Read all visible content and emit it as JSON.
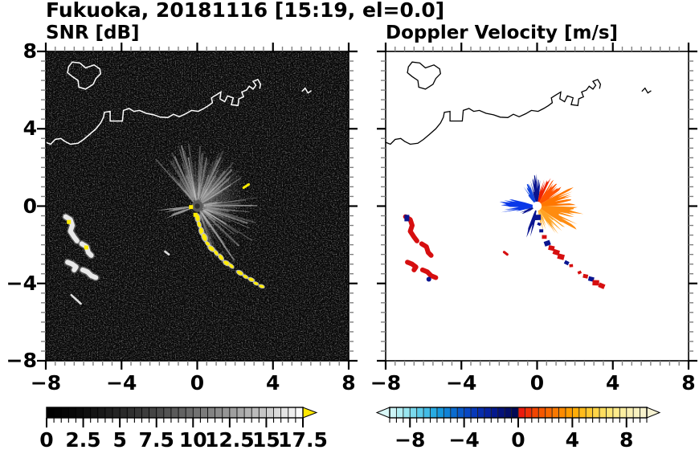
{
  "title": "Fukuoka, 20181116 [15:19, el=0.0]",
  "panels": {
    "snr": {
      "title": "SNR [dB]"
    },
    "vel": {
      "title": "Doppler Velocity [m/s]"
    }
  },
  "axes": {
    "xlim": [
      -8,
      8
    ],
    "ylim": [
      -8,
      8
    ],
    "x_tick_labels": [
      "−8",
      "−4",
      "0",
      "4",
      "8"
    ],
    "x_tick_values": [
      -8,
      -4,
      0,
      4,
      8
    ],
    "y_tick_labels": [
      "8",
      "4",
      "0",
      "−4",
      "−8"
    ],
    "y_tick_values": [
      8,
      4,
      0,
      -4,
      -8
    ],
    "major_step": 4,
    "minor_step": 0.5
  },
  "colorbars": {
    "snr": {
      "min": 0,
      "max": 17.5,
      "segment": 0.5,
      "tick_labels": [
        "0",
        "2.5",
        "5",
        "7.5",
        "10",
        "12.5",
        "15",
        "17.5"
      ],
      "label_values": [
        0,
        2.5,
        5,
        7.5,
        10,
        12.5,
        15,
        17.5
      ],
      "major_tick_step": 2.5,
      "gamma": 1.5,
      "low_color": "#000000",
      "high_color": "#ffffff",
      "over_color": "#ffe800"
    },
    "vel": {
      "min": -9.5,
      "max": 9.5,
      "segment": 0.5,
      "tick_labels": [
        "−8",
        "−4",
        "0",
        "4",
        "8"
      ],
      "label_values": [
        -8,
        -4,
        0,
        4,
        8
      ],
      "major_tick_values": [
        -8,
        -4,
        0,
        4,
        8
      ],
      "neg_stops": [
        "#d9f7f7",
        "#9ce8f0",
        "#55c8e8",
        "#18a0e0",
        "#0a6cd0",
        "#0840c0",
        "#0624a4",
        "#041078",
        "#02094a"
      ],
      "pos_stops": [
        "#e81010",
        "#f34a00",
        "#fa7800",
        "#ffa800",
        "#ffcf38",
        "#ffe878",
        "#faf0b0",
        "#f6f2d2"
      ]
    }
  },
  "map": {
    "coastline": [
      [
        -8,
        3.3
      ],
      [
        -7.75,
        3.2
      ],
      [
        -7.5,
        3.45
      ],
      [
        -7.2,
        3.5
      ],
      [
        -7.0,
        3.35
      ],
      [
        -6.7,
        3.2
      ],
      [
        -6.3,
        3.25
      ],
      [
        -6.0,
        3.45
      ],
      [
        -5.7,
        3.7
      ],
      [
        -5.35,
        4.0
      ],
      [
        -5.1,
        4.3
      ],
      [
        -4.95,
        4.6
      ],
      [
        -4.9,
        4.85
      ],
      [
        -4.6,
        4.9
      ],
      [
        -4.6,
        4.4
      ],
      [
        -3.95,
        4.4
      ],
      [
        -3.9,
        4.95
      ],
      [
        -3.6,
        5.05
      ],
      [
        -3.35,
        4.9
      ],
      [
        -3.05,
        4.95
      ],
      [
        -2.7,
        4.8
      ],
      [
        -2.3,
        4.72
      ],
      [
        -1.95,
        4.6
      ],
      [
        -1.55,
        4.58
      ],
      [
        -1.25,
        4.75
      ],
      [
        -0.95,
        4.62
      ],
      [
        -0.6,
        4.78
      ],
      [
        -0.3,
        4.95
      ],
      [
        0.05,
        4.9
      ],
      [
        0.35,
        5.05
      ],
      [
        0.6,
        5.2
      ],
      [
        0.8,
        5.35
      ],
      [
        0.75,
        5.6
      ],
      [
        1.0,
        5.75
      ],
      [
        1.25,
        5.9
      ],
      [
        1.2,
        5.55
      ],
      [
        1.45,
        5.4
      ],
      [
        1.6,
        5.7
      ],
      [
        1.9,
        5.6
      ],
      [
        1.8,
        5.25
      ],
      [
        2.15,
        5.2
      ],
      [
        2.2,
        5.55
      ],
      [
        2.45,
        5.65
      ],
      [
        2.35,
        5.9
      ],
      [
        2.6,
        6.0
      ],
      [
        2.75,
        6.2
      ],
      [
        2.95,
        6.05
      ],
      [
        3.1,
        6.25
      ],
      [
        2.95,
        6.45
      ],
      [
        3.2,
        6.55
      ],
      [
        3.35,
        6.3
      ],
      [
        3.3,
        6.1
      ]
    ],
    "island": [
      [
        -6.6,
        7.45
      ],
      [
        -6.2,
        7.4
      ],
      [
        -5.9,
        7.15
      ],
      [
        -5.45,
        7.3
      ],
      [
        -5.15,
        7.1
      ],
      [
        -5.1,
        6.85
      ],
      [
        -5.35,
        6.6
      ],
      [
        -5.5,
        6.3
      ],
      [
        -5.9,
        6.05
      ],
      [
        -6.25,
        6.15
      ],
      [
        -6.3,
        6.5
      ],
      [
        -6.6,
        6.7
      ],
      [
        -6.85,
        6.9
      ],
      [
        -6.8,
        7.2
      ]
    ],
    "fragment": [
      [
        5.55,
        5.95
      ],
      [
        5.7,
        6.1
      ],
      [
        5.85,
        5.85
      ],
      [
        6.0,
        5.95
      ]
    ]
  },
  "snr_features": {
    "center_disk_radius": 0.3,
    "fan_sector": [
      -75,
      135
    ],
    "fan_ray_count": 160,
    "left_wedges": [
      [
        183,
        192,
        2.1
      ],
      [
        195,
        204,
        1.7
      ]
    ],
    "trail": [
      [
        0.02,
        -0.62
      ],
      [
        0.1,
        -0.95
      ],
      [
        0.22,
        -1.3
      ],
      [
        0.38,
        -1.62
      ],
      [
        0.55,
        -1.95
      ],
      [
        0.75,
        -2.2
      ],
      [
        1.0,
        -2.42
      ],
      [
        1.25,
        -2.65
      ],
      [
        1.55,
        -2.95
      ],
      [
        1.8,
        -3.1
      ],
      [
        2.25,
        -3.45
      ],
      [
        2.55,
        -3.65
      ],
      [
        2.85,
        -3.8
      ],
      [
        3.1,
        -4.0
      ],
      [
        3.4,
        -4.15
      ]
    ],
    "echo_blobs": [
      [
        [
          -6.95,
          -0.55
        ],
        [
          -6.7,
          -0.7
        ],
        [
          -6.6,
          -1.0
        ],
        [
          -6.7,
          -1.3
        ],
        [
          -6.5,
          -1.6
        ],
        [
          -6.35,
          -1.8
        ]
      ],
      [
        [
          -6.1,
          -1.95
        ],
        [
          -5.85,
          -2.1
        ],
        [
          -5.75,
          -2.4
        ],
        [
          -5.6,
          -2.55
        ]
      ],
      [
        [
          -6.85,
          -2.9
        ],
        [
          -6.6,
          -3.0
        ],
        [
          -6.4,
          -3.15
        ],
        [
          -6.5,
          -3.3
        ]
      ],
      [
        [
          -6.05,
          -3.3
        ],
        [
          -5.8,
          -3.4
        ],
        [
          -5.6,
          -3.6
        ],
        [
          -5.35,
          -3.7
        ]
      ]
    ],
    "yellow_specks": [
      [
        -6.78,
        -0.82
      ],
      [
        -5.86,
        -2.14
      ],
      [
        -0.33,
        -0.05
      ],
      [
        -0.1,
        -0.45
      ]
    ],
    "white_dashes": [
      [
        [
          -6.65,
          -4.6
        ],
        [
          -6.15,
          -5.05
        ]
      ],
      [
        [
          -1.7,
          -2.35
        ],
        [
          -1.5,
          -2.5
        ]
      ]
    ],
    "yellow_dash": [
      [
        2.45,
        0.95
      ],
      [
        2.72,
        1.12
      ]
    ]
  },
  "vel_features": {
    "center_hole_radius": 0.24,
    "wedges": [
      [
        80,
        108,
        1.55,
        "#0a1590"
      ],
      [
        108,
        132,
        1.15,
        "#1144dd"
      ],
      [
        62,
        80,
        1.5,
        "#ee2200"
      ],
      [
        164,
        196,
        1.85,
        "#0a38e8"
      ],
      [
        196,
        214,
        0.9,
        "#0a1590"
      ],
      [
        246,
        262,
        1.65,
        "#0a1590"
      ],
      [
        30,
        62,
        1.5,
        "#ff5500"
      ],
      [
        0,
        30,
        2.0,
        "#ff7700"
      ],
      [
        -35,
        0,
        2.3,
        "#ff8c10"
      ],
      [
        -60,
        -35,
        1.7,
        "#ffa325"
      ],
      [
        -80,
        -60,
        1.25,
        "#ffb540"
      ]
    ],
    "trail_colors": [
      "#0a1590",
      "#0a1590",
      "#0a1590",
      "#d60f10",
      "#0a1590",
      "#d60f10",
      "#d60f10",
      "#d60f10",
      "#0a1590",
      "#d60f10",
      "#d60f10",
      "#d60f10",
      "#0a1590",
      "#d60f10",
      "#d60f10"
    ],
    "red_color": "#d60f10",
    "navy_color": "#0a1590",
    "navy_square": [
      -6.88,
      -0.62
    ],
    "navy_dot": [
      -5.72,
      -3.78
    ],
    "red_dash": [
      [
        -1.74,
        -2.38
      ],
      [
        -1.58,
        -2.5
      ]
    ]
  },
  "chart_data": {
    "type": "heatmap",
    "title": "Fukuoka, 20181116 [15:19, el=0.0]",
    "station": "Fukuoka",
    "date": "20181116",
    "time": "15:19",
    "elevation": 0.0,
    "panels": [
      {
        "title": "SNR [dB]",
        "xlim": [
          -8,
          8
        ],
        "ylim": [
          -8,
          8
        ],
        "x_ticks": [
          -8,
          -4,
          0,
          4,
          8
        ],
        "y_ticks": [
          8,
          4,
          0,
          -4,
          -8
        ],
        "colorbar": {
          "range": [
            0,
            17.5
          ],
          "tick_labels": [
            "0",
            "2.5",
            "5",
            "7.5",
            "10",
            "12.5",
            "15",
            "17.5"
          ],
          "colormap": "grayscale black to white",
          "over_arrow_color": "#ffe800"
        },
        "notable_features": [
          "black background with speckle noise",
          "white coastline overlay",
          "gray radial beam fan from radar at origin",
          "yellow high-SNR echo trail from (0,-0.6) to (3.4,-4.2)",
          "white echo cluster around (-6.5,-2.5)"
        ]
      },
      {
        "title": "Doppler Velocity [m/s]",
        "xlim": [
          -8,
          8
        ],
        "ylim": [
          -8,
          8
        ],
        "x_ticks": [
          -8,
          -4,
          0,
          4,
          8
        ],
        "y_ticks": [
          8,
          4,
          0,
          -4,
          -8
        ],
        "colorbar": {
          "range": [
            -9.5,
            9.5
          ],
          "tick_labels": [
            "−8",
            "−4",
            "0",
            "4",
            "8"
          ],
          "colormap": "pale-cyan to navy (negative), red to cream (positive)",
          "under_arrow_color": "#d9f7f7",
          "over_arrow_color": "#f6f2d2"
        },
        "notable_features": [
          "white background with black coastline",
          "blue approaching lobes north and west of radar",
          "orange-red receding fan east and southeast",
          "red and navy echo trail toward southeast",
          "red echo cluster around (-6.5,-2.5)"
        ]
      }
    ]
  }
}
